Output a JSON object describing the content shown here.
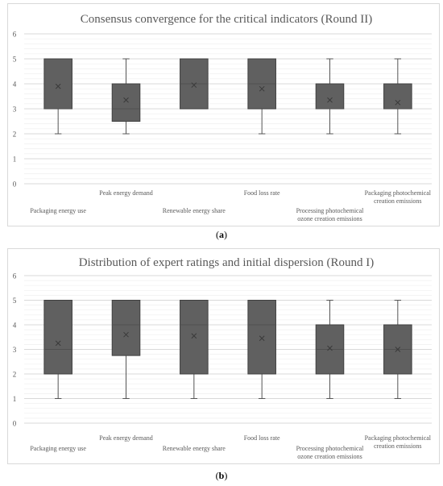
{
  "chart_data": [
    {
      "type": "box",
      "title": "Consensus convergence for the critical indicators (Round II)",
      "panel_label": "a",
      "ylim": [
        0,
        6
      ],
      "yticks": [
        0,
        1,
        2,
        3,
        4,
        5,
        6
      ],
      "grid": true,
      "categories": [
        "Packaging energy use",
        "Peak energy demand",
        "Renewable energy share",
        "Food loss rate",
        "Processing photochemical ozone creation emissions",
        "Packaging photochemical creation emissions"
      ],
      "category_labels": [
        [
          "Packaging energy use"
        ],
        [
          "Peak energy demand"
        ],
        [
          "Renewable energy share"
        ],
        [
          "Food loss rate"
        ],
        [
          "Processing photochemical",
          "ozone creation emissions"
        ],
        [
          "Packaging photochemical",
          "creation emissions"
        ]
      ],
      "boxes": [
        {
          "min": 2,
          "q1": 3,
          "median": 3,
          "q3": 5,
          "max": 5,
          "mean": 3.9
        },
        {
          "min": 2,
          "q1": 2.5,
          "median": 3,
          "q3": 4,
          "max": 5,
          "mean": 3.35
        },
        {
          "min": 3,
          "q1": 3,
          "median": 4,
          "q3": 5,
          "max": 5,
          "mean": 3.95
        },
        {
          "min": 2,
          "q1": 3,
          "median": 4,
          "q3": 5,
          "max": 5,
          "mean": 3.8
        },
        {
          "min": 2,
          "q1": 3,
          "median": 3,
          "q3": 4,
          "max": 5,
          "mean": 3.35
        },
        {
          "min": 2,
          "q1": 3,
          "median": 3,
          "q3": 4,
          "max": 5,
          "mean": 3.25
        }
      ]
    },
    {
      "type": "box",
      "title": "Distribution of expert ratings and initial dispersion (Round I)",
      "panel_label": "b",
      "ylim": [
        0,
        6
      ],
      "yticks": [
        0,
        1,
        2,
        3,
        4,
        5,
        6
      ],
      "grid": true,
      "categories": [
        "Packaging energy use",
        "Peak energy demand",
        "Renewable energy share",
        "Food loss rate",
        "Processing photochemical ozone creation emissions",
        "Packaging photochemical creation emissions"
      ],
      "category_labels": [
        [
          "Packaging energy use"
        ],
        [
          "Peak energy demand"
        ],
        [
          "Renewable energy share"
        ],
        [
          "Food loss rate"
        ],
        [
          "Processing photochemical",
          "ozone creation emissions"
        ],
        [
          "Packaging photochemical",
          "creation emissions"
        ]
      ],
      "boxes": [
        {
          "min": 1,
          "q1": 2,
          "median": 3,
          "q3": 5,
          "max": 5,
          "mean": 3.25
        },
        {
          "min": 1,
          "q1": 2.75,
          "median": 4,
          "q3": 5,
          "max": 5,
          "mean": 3.6
        },
        {
          "min": 1,
          "q1": 2,
          "median": 4,
          "q3": 5,
          "max": 5,
          "mean": 3.55
        },
        {
          "min": 1,
          "q1": 2,
          "median": 4,
          "q3": 5,
          "max": 5,
          "mean": 3.45
        },
        {
          "min": 1,
          "q1": 2,
          "median": 3,
          "q3": 4,
          "max": 5,
          "mean": 3.05
        },
        {
          "min": 1,
          "q1": 2,
          "median": 3,
          "q3": 4,
          "max": 5,
          "mean": 3.0
        }
      ]
    }
  ],
  "captions": {
    "a": "a",
    "b": "b"
  },
  "colors": {
    "box_fill": "#606060",
    "box_stroke": "#404040",
    "whisker": "#555555",
    "grid": "#d9d9d9",
    "axis_text": "#595959",
    "mean_marker": "#3a3a3a"
  }
}
